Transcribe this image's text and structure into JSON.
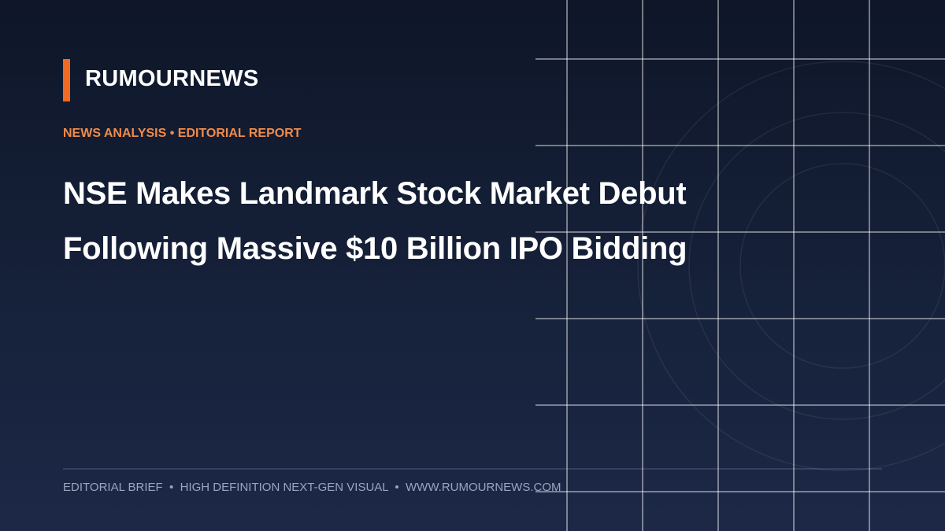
{
  "brand": "RUMOURNEWS",
  "kicker": "NEWS ANALYSIS • EDITORIAL REPORT",
  "headline": [
    "NSE Makes Landmark Stock Market Debut",
    "Following Massive $10 Billion IPO Bidding"
  ],
  "footer": "EDITORIAL BRIEF  •  HIGH DEFINITION NEXT-GEN VISUAL  •  WWW.RUMOURNEWS.COM"
}
